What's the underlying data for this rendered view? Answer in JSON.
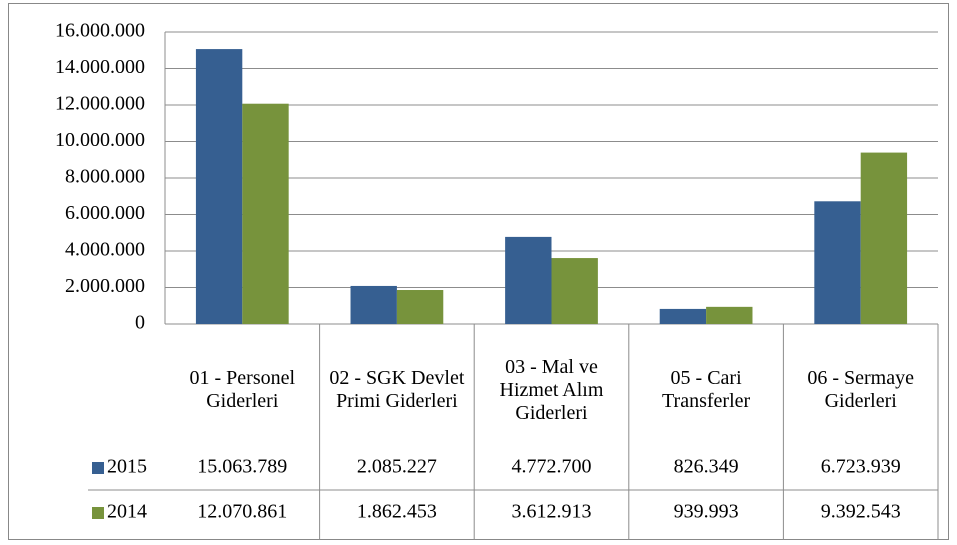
{
  "chart_data": {
    "type": "bar",
    "categories": [
      "01 - Personel Giderleri",
      "02 - SGK Devlet Primi Giderleri",
      "03 - Mal ve Hizmet Alım Giderleri",
      "05 - Cari Transferler",
      "06 - Sermaye Giderleri"
    ],
    "series": [
      {
        "name": "2015",
        "color": "#365f91",
        "values": [
          15063789,
          2085227,
          4772700,
          826349,
          6723939
        ],
        "value_labels": [
          "15.063.789",
          "2.085.227",
          "4.772.700",
          "826.349",
          "6.723.939"
        ]
      },
      {
        "name": "2014",
        "color": "#77933c",
        "values": [
          12070861,
          1862453,
          3612913,
          939993,
          9392543
        ],
        "value_labels": [
          "12.070.861",
          "1.862.453",
          "3.612.913",
          "939.993",
          "9.392.543"
        ]
      }
    ],
    "ylim": [
      0,
      16000000
    ],
    "yticks": [
      0,
      {
        "value": 2000000,
        "label": "2.000.000"
      },
      {
        "value": 4000000,
        "label": "4.000.000"
      },
      {
        "value": 6000000,
        "label": "6.000.000"
      },
      {
        "value": 8000000,
        "label": "8.000.000"
      },
      {
        "value": 10000000,
        "label": "10.000.000"
      },
      {
        "value": 12000000,
        "label": "12.000.000"
      },
      {
        "value": 14000000,
        "label": "14.000.000"
      },
      {
        "value": 16000000,
        "label": "16.000.000"
      }
    ],
    "grid": true
  }
}
